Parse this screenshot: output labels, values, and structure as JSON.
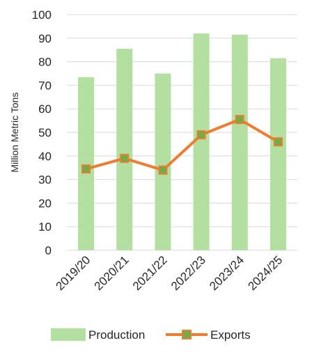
{
  "chart_data": {
    "type": "bar",
    "categories": [
      "2019/20",
      "2020/21",
      "2021/22",
      "2022/23",
      "2023/24",
      "2024/25"
    ],
    "series": [
      {
        "name": "Production",
        "type": "bar",
        "values": [
          73.5,
          85.5,
          75,
          92,
          91.5,
          81.5
        ],
        "color": "#b3e0a0"
      },
      {
        "name": "Exports",
        "type": "line",
        "values": [
          34.5,
          39,
          34,
          49,
          55.5,
          46
        ],
        "color": "#ed7d31",
        "marker_fill": "#70ad47"
      }
    ],
    "ylabel": "Million Metric Tons",
    "ylim": [
      0,
      100
    ],
    "yticks": [
      0,
      10,
      20,
      30,
      40,
      50,
      60,
      70,
      80,
      90,
      100
    ],
    "grid": true,
    "legend_position": "bottom"
  },
  "legend": {
    "production_label": "Production",
    "exports_label": "Exports"
  }
}
